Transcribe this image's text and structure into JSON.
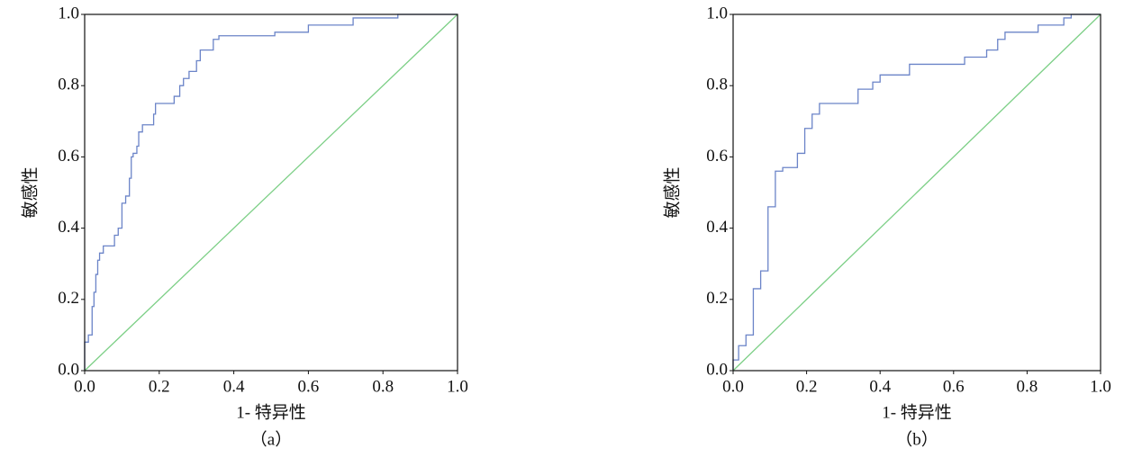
{
  "chart_data": [
    {
      "type": "line",
      "xlabel": "1- 特异性",
      "ylabel": "敏感性",
      "caption": "（a）",
      "xlim": [
        0,
        1
      ],
      "ylim": [
        0,
        1
      ],
      "xticks": [
        {
          "value": 0,
          "label": "0.0"
        },
        0.2,
        0.4,
        0.6,
        0.8,
        {
          "value": 1,
          "label": "1.0"
        }
      ],
      "yticks": [
        {
          "value": 0,
          "label": "0.0"
        },
        0.2,
        0.4,
        0.6,
        0.8,
        {
          "value": 1,
          "label": "1.0"
        }
      ],
      "series": [
        {
          "color": "#6b84c8",
          "x": [
            0,
            0,
            0.01,
            0.01,
            0.02,
            0.02,
            0.025,
            0.025,
            0.03,
            0.03,
            0.035,
            0.035,
            0.04,
            0.04,
            0.05,
            0.05,
            0.08,
            0.08,
            0.09,
            0.09,
            0.1,
            0.1,
            0.11,
            0.11,
            0.12,
            0.12,
            0.125,
            0.125,
            0.13,
            0.13,
            0.14,
            0.14,
            0.145,
            0.145,
            0.155,
            0.155,
            0.185,
            0.185,
            0.19,
            0.19,
            0.24,
            0.24,
            0.255,
            0.255,
            0.265,
            0.265,
            0.28,
            0.28,
            0.3,
            0.3,
            0.31,
            0.31,
            0.345,
            0.345,
            0.36,
            0.36,
            0.51,
            0.51,
            0.6,
            0.6,
            0.72,
            0.72,
            0.84,
            0.84,
            1
          ],
          "values": [
            0,
            0.08,
            0.08,
            0.1,
            0.1,
            0.18,
            0.18,
            0.22,
            0.22,
            0.27,
            0.27,
            0.31,
            0.31,
            0.33,
            0.33,
            0.35,
            0.35,
            0.38,
            0.38,
            0.4,
            0.4,
            0.47,
            0.47,
            0.49,
            0.49,
            0.54,
            0.54,
            0.6,
            0.6,
            0.61,
            0.61,
            0.63,
            0.63,
            0.67,
            0.67,
            0.69,
            0.69,
            0.72,
            0.72,
            0.75,
            0.75,
            0.77,
            0.77,
            0.8,
            0.8,
            0.82,
            0.82,
            0.84,
            0.84,
            0.87,
            0.87,
            0.9,
            0.9,
            0.93,
            0.93,
            0.94,
            0.94,
            0.95,
            0.95,
            0.97,
            0.97,
            0.99,
            0.99,
            1,
            1
          ]
        },
        {
          "color": "#7ccf86",
          "x": [
            0,
            1
          ],
          "values": [
            0,
            1
          ]
        }
      ]
    },
    {
      "type": "line",
      "xlabel": "1- 特异性",
      "ylabel": "敏感性",
      "caption": "（b）",
      "xlim": [
        0,
        1
      ],
      "ylim": [
        0,
        1
      ],
      "xticks": [
        {
          "value": 0,
          "label": "0.0"
        },
        0.2,
        0.4,
        0.6,
        0.8,
        {
          "value": 1,
          "label": "1.0"
        }
      ],
      "yticks": [
        {
          "value": 0,
          "label": "0.0"
        },
        0.2,
        0.4,
        0.6,
        0.8,
        {
          "value": 1,
          "label": "1.0"
        }
      ],
      "series": [
        {
          "color": "#6b84c8",
          "x": [
            0,
            0,
            0.015,
            0.015,
            0.035,
            0.035,
            0.055,
            0.055,
            0.075,
            0.075,
            0.095,
            0.095,
            0.115,
            0.115,
            0.135,
            0.135,
            0.175,
            0.175,
            0.195,
            0.195,
            0.215,
            0.215,
            0.235,
            0.235,
            0.34,
            0.34,
            0.38,
            0.38,
            0.4,
            0.4,
            0.48,
            0.48,
            0.63,
            0.63,
            0.69,
            0.69,
            0.72,
            0.72,
            0.74,
            0.74,
            0.83,
            0.83,
            0.9,
            0.9,
            0.92,
            0.92,
            1
          ],
          "values": [
            0,
            0.03,
            0.03,
            0.07,
            0.07,
            0.1,
            0.1,
            0.23,
            0.23,
            0.28,
            0.28,
            0.46,
            0.46,
            0.56,
            0.56,
            0.57,
            0.57,
            0.61,
            0.61,
            0.68,
            0.68,
            0.72,
            0.72,
            0.75,
            0.75,
            0.79,
            0.79,
            0.81,
            0.81,
            0.83,
            0.83,
            0.86,
            0.86,
            0.88,
            0.88,
            0.9,
            0.9,
            0.93,
            0.93,
            0.95,
            0.95,
            0.97,
            0.97,
            0.99,
            0.99,
            1,
            1
          ]
        },
        {
          "color": "#7ccf86",
          "x": [
            0,
            1
          ],
          "values": [
            0,
            1
          ]
        }
      ]
    }
  ]
}
